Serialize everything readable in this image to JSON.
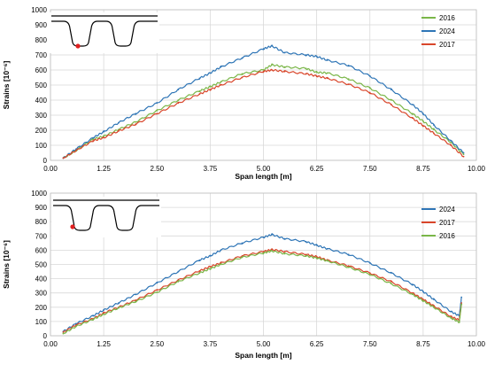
{
  "chart_data": [
    {
      "type": "line",
      "xlabel": "Span length [m]",
      "ylabel": "Strains [10⁻⁶]",
      "xlim": [
        0,
        10
      ],
      "ylim": [
        0,
        1000
      ],
      "x_ticks": [
        "0.00",
        "1.25",
        "2.50",
        "3.75",
        "5.00",
        "6.25",
        "7.50",
        "8.75",
        "10.00"
      ],
      "y_ticks": [
        "0",
        "100",
        "200",
        "300",
        "400",
        "500",
        "600",
        "700",
        "800",
        "900",
        "1000"
      ],
      "grid": true,
      "legend_position": "top-right",
      "inset": "cross-section sketch with sensor marked",
      "series": [
        {
          "name": "2016",
          "color": "#7ab648",
          "x": [
            0.3,
            0.6,
            1.0,
            1.25,
            1.6,
            2.0,
            2.5,
            3.0,
            3.5,
            3.75,
            4.0,
            4.5,
            5.0,
            5.2,
            5.5,
            6.0,
            6.25,
            6.5,
            7.0,
            7.5,
            8.0,
            8.5,
            8.75,
            9.0,
            9.4,
            9.7
          ],
          "y": [
            15,
            65,
            140,
            160,
            205,
            255,
            330,
            400,
            460,
            490,
            520,
            575,
            600,
            635,
            620,
            610,
            585,
            580,
            540,
            480,
            400,
            310,
            260,
            205,
            120,
            40
          ]
        },
        {
          "name": "2024",
          "color": "#2e75b6",
          "x": [
            0.3,
            0.6,
            1.0,
            1.25,
            1.6,
            2.0,
            2.5,
            3.0,
            3.5,
            3.75,
            4.0,
            4.5,
            5.0,
            5.2,
            5.5,
            6.0,
            6.25,
            6.5,
            7.0,
            7.5,
            8.0,
            8.5,
            8.75,
            9.0,
            9.4,
            9.7
          ],
          "y": [
            15,
            75,
            150,
            190,
            250,
            310,
            380,
            470,
            545,
            580,
            620,
            680,
            740,
            760,
            715,
            700,
            690,
            665,
            630,
            560,
            470,
            370,
            310,
            235,
            130,
            50
          ]
        },
        {
          "name": "2017",
          "color": "#d9462b",
          "x": [
            0.3,
            0.6,
            1.0,
            1.25,
            1.6,
            2.0,
            2.5,
            3.0,
            3.5,
            3.75,
            4.0,
            4.5,
            5.0,
            5.2,
            5.5,
            6.0,
            6.25,
            6.5,
            7.0,
            7.5,
            8.0,
            8.5,
            8.75,
            9.0,
            9.4,
            9.7
          ],
          "y": [
            15,
            65,
            130,
            150,
            195,
            240,
            310,
            380,
            440,
            470,
            500,
            550,
            590,
            600,
            590,
            575,
            560,
            545,
            505,
            450,
            370,
            280,
            230,
            180,
            100,
            25
          ]
        }
      ]
    },
    {
      "type": "line",
      "xlabel": "Span length [m]",
      "ylabel": "Strains [10⁻⁶]",
      "xlim": [
        0,
        10
      ],
      "ylim": [
        0,
        1000
      ],
      "x_ticks": [
        "0.00",
        "1.25",
        "2.50",
        "3.75",
        "5.00",
        "6.25",
        "7.50",
        "8.75",
        "10.00"
      ],
      "y_ticks": [
        "0",
        "100",
        "200",
        "300",
        "400",
        "500",
        "600",
        "700",
        "800",
        "900",
        "1000"
      ],
      "grid": true,
      "legend_position": "top-right",
      "inset": "cross-section sketch with sensor marked",
      "series": [
        {
          "name": "2024",
          "color": "#2e75b6",
          "x": [
            0.3,
            0.6,
            1.0,
            1.25,
            1.6,
            2.0,
            2.5,
            3.0,
            3.5,
            3.75,
            4.0,
            4.5,
            5.0,
            5.2,
            5.5,
            6.0,
            6.25,
            6.5,
            7.0,
            7.5,
            8.0,
            8.5,
            8.75,
            9.0,
            9.4,
            9.6,
            9.65
          ],
          "y": [
            30,
            85,
            140,
            180,
            230,
            290,
            370,
            450,
            530,
            560,
            600,
            650,
            690,
            710,
            680,
            660,
            635,
            610,
            570,
            510,
            440,
            360,
            310,
            255,
            170,
            140,
            270
          ]
        },
        {
          "name": "2017",
          "color": "#d9462b",
          "x": [
            0.3,
            0.6,
            1.0,
            1.25,
            1.6,
            2.0,
            2.5,
            3.0,
            3.5,
            3.75,
            4.0,
            4.5,
            5.0,
            5.2,
            5.5,
            6.0,
            6.25,
            6.5,
            7.0,
            7.5,
            8.0,
            8.5,
            8.75,
            9.0,
            9.4,
            9.6,
            9.65
          ],
          "y": [
            25,
            75,
            120,
            160,
            200,
            250,
            320,
            390,
            455,
            485,
            510,
            560,
            590,
            605,
            590,
            570,
            555,
            530,
            490,
            440,
            380,
            300,
            255,
            210,
            135,
            110,
            230
          ]
        },
        {
          "name": "2016",
          "color": "#7ab648",
          "x": [
            0.3,
            0.6,
            1.0,
            1.25,
            1.6,
            2.0,
            2.5,
            3.0,
            3.5,
            3.75,
            4.0,
            4.5,
            5.0,
            5.2,
            5.5,
            6.0,
            6.25,
            6.5,
            7.0,
            7.5,
            8.0,
            8.5,
            8.75,
            9.0,
            9.4,
            9.6,
            9.65
          ],
          "y": [
            15,
            65,
            115,
            150,
            195,
            240,
            305,
            380,
            440,
            470,
            500,
            550,
            580,
            595,
            575,
            560,
            545,
            525,
            480,
            430,
            365,
            290,
            245,
            200,
            125,
            95,
            220
          ]
        }
      ]
    }
  ]
}
